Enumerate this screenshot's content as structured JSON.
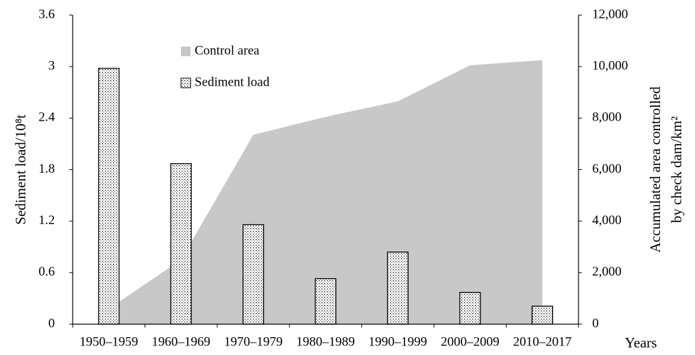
{
  "chart_data": {
    "type": "bar-area",
    "categories": [
      "1950–1959",
      "1960–1969",
      "1970–1979",
      "1980–1989",
      "1990–1999",
      "2000–2009",
      "2010–2017"
    ],
    "series": [
      {
        "name": "Control area",
        "type": "area",
        "axis": "y2",
        "color": "#c8c8c8",
        "values": [
          600,
          2500,
          7350,
          8050,
          8650,
          10050,
          10250
        ]
      },
      {
        "name": "Sediment load",
        "type": "bar",
        "color": "#000000",
        "values": [
          2.98,
          1.87,
          1.16,
          0.53,
          0.84,
          0.37,
          0.21
        ]
      }
    ],
    "ylabel": "Sediment load/10⁸t",
    "y2label": [
      "Accumulated area controlled",
      "by check dam/km²"
    ],
    "xlabel": "Years",
    "ylim": [
      0,
      3.6
    ],
    "yticks": [
      0,
      0.6,
      1.2,
      1.8,
      2.4,
      3,
      3.6
    ],
    "y2lim": [
      0,
      12000
    ],
    "y2ticks": [
      0,
      {
        "value": 2000,
        "label": "2,000"
      },
      {
        "value": 4000,
        "label": "4,000"
      },
      {
        "value": 6000,
        "label": "6,000"
      },
      {
        "value": 8000,
        "label": "8,000"
      },
      {
        "value": 10000,
        "label": "10,000"
      },
      {
        "value": 12000,
        "label": "12,000"
      }
    ],
    "grid": false
  }
}
